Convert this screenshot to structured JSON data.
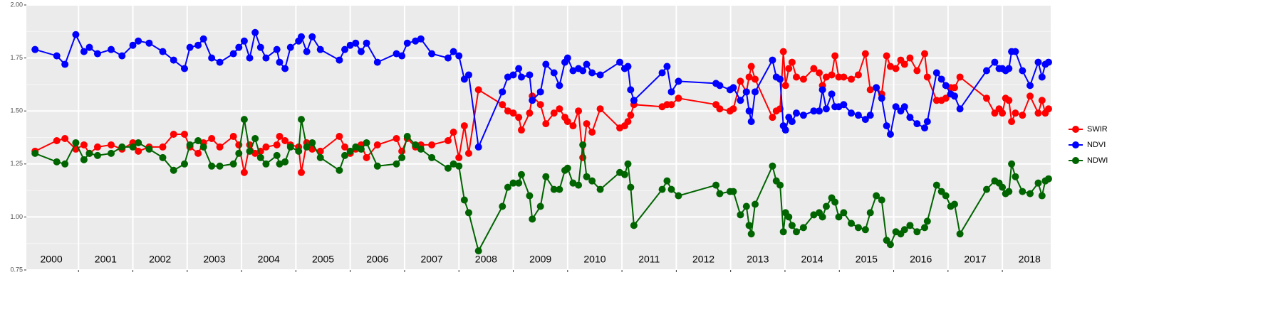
{
  "chart_data": {
    "type": "line",
    "x": [
      2000.2,
      2000.6,
      2000.75,
      2000.95,
      2001.1,
      2001.2,
      2001.35,
      2001.6,
      2001.8,
      2002.0,
      2002.1,
      2002.3,
      2002.55,
      2002.75,
      2002.95,
      2003.05,
      2003.2,
      2003.3,
      2003.45,
      2003.6,
      2003.85,
      2003.95,
      2004.05,
      2004.15,
      2004.25,
      2004.35,
      2004.45,
      2004.65,
      2004.7,
      2004.8,
      2004.9,
      2005.05,
      2005.1,
      2005.2,
      2005.3,
      2005.45,
      2005.8,
      2005.9,
      2006.0,
      2006.1,
      2006.2,
      2006.3,
      2006.5,
      2006.85,
      2006.95,
      2007.05,
      2007.2,
      2007.3,
      2007.5,
      2007.8,
      2007.9,
      2008.0,
      2008.1,
      2008.18,
      2008.36,
      2008.8,
      2008.9,
      2009.0,
      2009.1,
      2009.15,
      2009.3,
      2009.35,
      2009.5,
      2009.6,
      2009.75,
      2009.85,
      2009.95,
      2010.0,
      2010.1,
      2010.2,
      2010.28,
      2010.35,
      2010.45,
      2010.6,
      2010.96,
      2011.05,
      2011.11,
      2011.16,
      2011.22,
      2011.74,
      2011.83,
      2011.91,
      2012.04,
      2012.73,
      2012.8,
      2012.99,
      2013.05,
      2013.18,
      2013.29,
      2013.34,
      2013.38,
      2013.45,
      2013.77,
      2013.84,
      2013.91,
      2013.97,
      2014.01,
      2014.07,
      2014.13,
      2014.21,
      2014.34,
      2014.53,
      2014.63,
      2014.69,
      2014.76,
      2014.86,
      2014.92,
      2014.99,
      2015.08,
      2015.22,
      2015.35,
      2015.48,
      2015.57,
      2015.68,
      2015.78,
      2015.87,
      2015.94,
      2016.04,
      2016.13,
      2016.2,
      2016.3,
      2016.43,
      2016.57,
      2016.62,
      2016.79,
      2016.88,
      2016.96,
      2017.05,
      2017.12,
      2017.22,
      2017.71,
      2017.86,
      2017.94,
      2018.0,
      2018.06,
      2018.12,
      2018.17,
      2018.24,
      2018.37,
      2018.51,
      2018.66,
      2018.73,
      2018.79,
      2018.85
    ],
    "series": [
      {
        "name": "SWIR",
        "color": "#ff0000",
        "values": [
          1.31,
          1.36,
          1.37,
          1.32,
          1.34,
          1.3,
          1.33,
          1.34,
          1.32,
          1.35,
          1.31,
          1.33,
          1.33,
          1.39,
          1.39,
          1.33,
          1.3,
          1.35,
          1.37,
          1.33,
          1.38,
          1.34,
          1.21,
          1.34,
          1.3,
          1.31,
          1.33,
          1.34,
          1.38,
          1.36,
          1.34,
          1.33,
          1.21,
          1.35,
          1.32,
          1.31,
          1.38,
          1.33,
          1.3,
          1.32,
          1.34,
          1.28,
          1.34,
          1.37,
          1.31,
          1.37,
          1.33,
          1.34,
          1.34,
          1.36,
          1.4,
          1.28,
          1.43,
          1.3,
          1.6,
          1.53,
          1.5,
          1.49,
          1.47,
          1.41,
          1.49,
          1.57,
          1.53,
          1.44,
          1.49,
          1.51,
          1.47,
          1.45,
          1.43,
          1.5,
          1.28,
          1.44,
          1.4,
          1.51,
          1.42,
          1.43,
          1.45,
          1.48,
          1.53,
          1.52,
          1.53,
          1.53,
          1.56,
          1.53,
          1.51,
          1.5,
          1.51,
          1.64,
          1.59,
          1.66,
          1.71,
          1.65,
          1.47,
          1.5,
          1.51,
          1.78,
          1.62,
          1.7,
          1.73,
          1.66,
          1.65,
          1.7,
          1.68,
          1.62,
          1.66,
          1.67,
          1.76,
          1.66,
          1.66,
          1.65,
          1.67,
          1.77,
          1.6,
          1.61,
          1.58,
          1.76,
          1.71,
          1.7,
          1.74,
          1.72,
          1.75,
          1.69,
          1.77,
          1.66,
          1.55,
          1.55,
          1.56,
          1.61,
          1.61,
          1.66,
          1.56,
          1.49,
          1.51,
          1.49,
          1.56,
          1.55,
          1.45,
          1.49,
          1.48,
          1.57,
          1.49,
          1.55,
          1.49,
          1.51
        ]
      },
      {
        "name": "NDVI",
        "color": "#0000ff",
        "values": [
          1.79,
          1.76,
          1.72,
          1.86,
          1.78,
          1.8,
          1.77,
          1.79,
          1.76,
          1.81,
          1.83,
          1.82,
          1.78,
          1.74,
          1.7,
          1.8,
          1.81,
          1.84,
          1.75,
          1.73,
          1.77,
          1.8,
          1.83,
          1.75,
          1.87,
          1.8,
          1.75,
          1.79,
          1.73,
          1.7,
          1.8,
          1.83,
          1.85,
          1.78,
          1.85,
          1.79,
          1.74,
          1.79,
          1.81,
          1.82,
          1.78,
          1.82,
          1.73,
          1.77,
          1.76,
          1.82,
          1.83,
          1.84,
          1.77,
          1.75,
          1.78,
          1.76,
          1.65,
          1.67,
          1.33,
          1.59,
          1.66,
          1.67,
          1.7,
          1.66,
          1.67,
          1.55,
          1.59,
          1.72,
          1.68,
          1.62,
          1.73,
          1.75,
          1.69,
          1.7,
          1.69,
          1.72,
          1.68,
          1.67,
          1.73,
          1.7,
          1.71,
          1.6,
          1.55,
          1.68,
          1.71,
          1.59,
          1.64,
          1.63,
          1.62,
          1.6,
          1.61,
          1.55,
          1.59,
          1.5,
          1.45,
          1.59,
          1.74,
          1.66,
          1.65,
          1.43,
          1.41,
          1.47,
          1.45,
          1.49,
          1.48,
          1.5,
          1.5,
          1.6,
          1.51,
          1.58,
          1.52,
          1.52,
          1.53,
          1.49,
          1.48,
          1.46,
          1.48,
          1.61,
          1.56,
          1.43,
          1.39,
          1.52,
          1.5,
          1.52,
          1.47,
          1.44,
          1.42,
          1.45,
          1.68,
          1.65,
          1.62,
          1.58,
          1.57,
          1.51,
          1.69,
          1.73,
          1.7,
          1.7,
          1.69,
          1.7,
          1.78,
          1.78,
          1.69,
          1.62,
          1.73,
          1.66,
          1.72,
          1.73
        ]
      },
      {
        "name": "NDWI",
        "color": "#006400",
        "values": [
          1.3,
          1.26,
          1.25,
          1.35,
          1.27,
          1.3,
          1.29,
          1.3,
          1.33,
          1.33,
          1.35,
          1.32,
          1.28,
          1.22,
          1.25,
          1.34,
          1.36,
          1.33,
          1.24,
          1.24,
          1.25,
          1.3,
          1.46,
          1.31,
          1.37,
          1.28,
          1.25,
          1.29,
          1.25,
          1.26,
          1.33,
          1.31,
          1.46,
          1.33,
          1.35,
          1.28,
          1.22,
          1.29,
          1.31,
          1.33,
          1.32,
          1.35,
          1.24,
          1.25,
          1.28,
          1.38,
          1.34,
          1.32,
          1.28,
          1.23,
          1.25,
          1.24,
          1.08,
          1.02,
          0.84,
          1.05,
          1.14,
          1.16,
          1.16,
          1.2,
          1.1,
          0.99,
          1.05,
          1.19,
          1.13,
          1.13,
          1.22,
          1.23,
          1.16,
          1.15,
          1.34,
          1.19,
          1.17,
          1.13,
          1.21,
          1.2,
          1.25,
          1.14,
          0.96,
          1.13,
          1.17,
          1.13,
          1.1,
          1.15,
          1.11,
          1.12,
          1.12,
          1.01,
          1.05,
          0.96,
          0.92,
          1.06,
          1.24,
          1.17,
          1.15,
          0.93,
          1.02,
          1.0,
          0.96,
          0.93,
          0.95,
          1.01,
          1.02,
          1.0,
          1.05,
          1.09,
          1.07,
          1.0,
          1.02,
          0.97,
          0.95,
          0.94,
          1.02,
          1.1,
          1.08,
          0.89,
          0.87,
          0.93,
          0.92,
          0.94,
          0.96,
          0.93,
          0.95,
          0.98,
          1.15,
          1.12,
          1.1,
          1.05,
          1.06,
          0.92,
          1.13,
          1.17,
          1.16,
          1.14,
          1.11,
          1.12,
          1.25,
          1.19,
          1.12,
          1.11,
          1.16,
          1.1,
          1.17,
          1.18
        ]
      }
    ],
    "xlim": [
      2000.04,
      2018.89
    ],
    "xticks": [
      {
        "value": 2000.5,
        "label": "2000"
      },
      {
        "value": 2001.5,
        "label": "2001"
      },
      {
        "value": 2002.5,
        "label": "2002"
      },
      {
        "value": 2003.5,
        "label": "2003"
      },
      {
        "value": 2004.5,
        "label": "2004"
      },
      {
        "value": 2005.5,
        "label": "2005"
      },
      {
        "value": 2006.5,
        "label": "2006"
      },
      {
        "value": 2007.5,
        "label": "2007"
      },
      {
        "value": 2008.5,
        "label": "2008"
      },
      {
        "value": 2009.5,
        "label": "2009"
      },
      {
        "value": 2010.5,
        "label": "2010"
      },
      {
        "value": 2011.5,
        "label": "2011"
      },
      {
        "value": 2012.5,
        "label": "2012"
      },
      {
        "value": 2013.5,
        "label": "2013"
      },
      {
        "value": 2014.5,
        "label": "2014"
      },
      {
        "value": 2015.5,
        "label": "2015"
      },
      {
        "value": 2016.5,
        "label": "2016"
      },
      {
        "value": 2017.5,
        "label": "2017"
      },
      {
        "value": 2018.5,
        "label": "2018"
      }
    ],
    "ylim": [
      0.75,
      2.0
    ],
    "yticks": [
      {
        "value": 0.75,
        "label": "0.75"
      },
      {
        "value": 1.0,
        "label": "1.00"
      },
      {
        "value": 1.25,
        "label": "1.25"
      },
      {
        "value": 1.5,
        "label": "1.50"
      },
      {
        "value": 1.75,
        "label": "1.75"
      },
      {
        "value": 2.0,
        "label": "2.00"
      }
    ],
    "grid": true,
    "legend": "right"
  }
}
